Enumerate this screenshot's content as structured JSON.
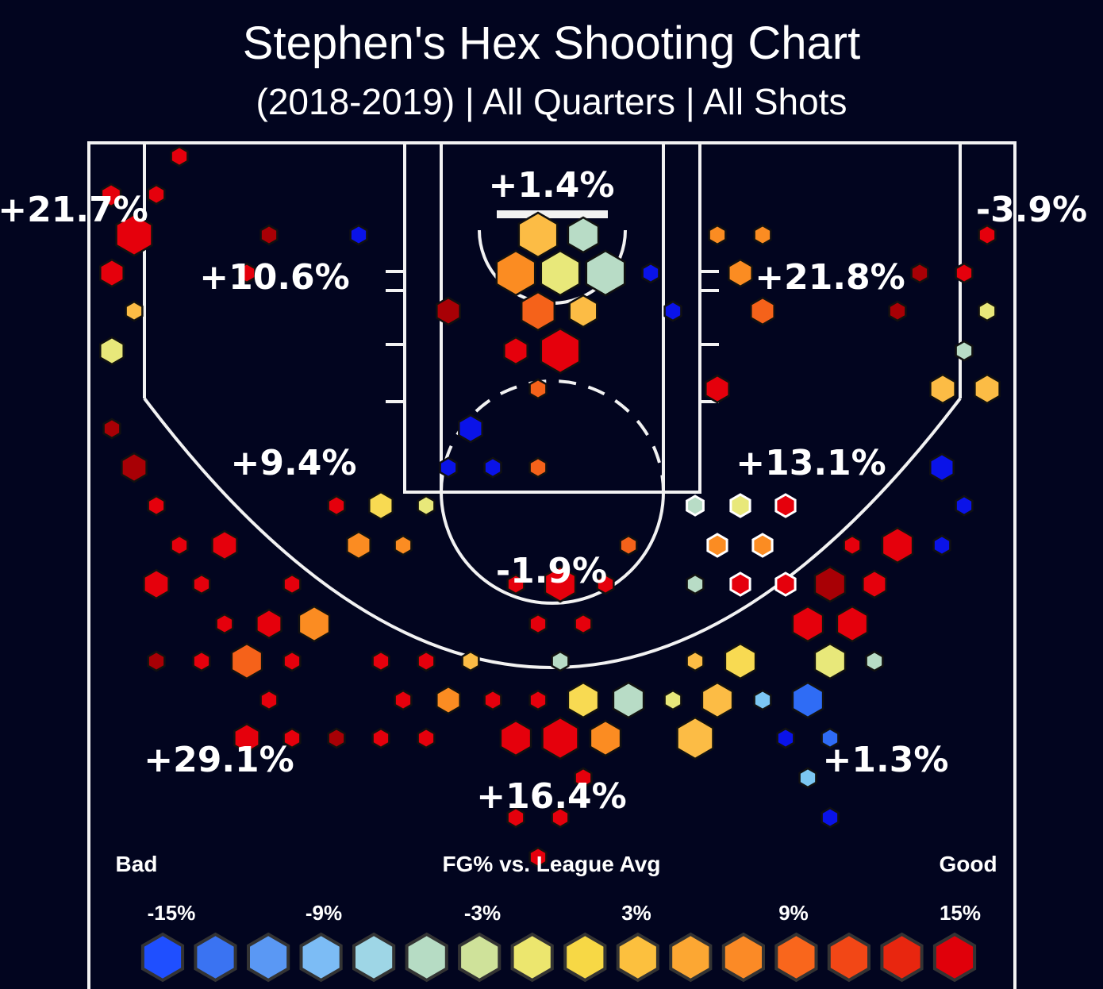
{
  "title": "Stephen's Hex Shooting Chart",
  "subtitle": "(2018-2019) | All Quarters | All Shots",
  "chart_data": {
    "type": "heatmap",
    "metric": "FG% vs. League Avg",
    "legend": {
      "title": "FG% vs. League Avg",
      "low_label": "Bad",
      "high_label": "Good",
      "tick_labels": [
        "-15%",
        "-9%",
        "-3%",
        "3%",
        "9%",
        "15%"
      ],
      "swatches": [
        "#1f4fff",
        "#3a73f2",
        "#5a98f4",
        "#7cbcf5",
        "#9ed6e6",
        "#b6dcc4",
        "#cfe29a",
        "#ece66e",
        "#f7d845",
        "#fcc03e",
        "#fca733",
        "#fb8a26",
        "#f9661c",
        "#f24716",
        "#e8260f",
        "#e0000a"
      ]
    },
    "zones": [
      {
        "label": "+21.7%",
        "value": 21.7
      },
      {
        "label": "+10.6%",
        "value": 10.6
      },
      {
        "label": "+1.4%",
        "value": 1.4
      },
      {
        "label": "+21.8%",
        "value": 21.8
      },
      {
        "label": "-3.9%",
        "value": -3.9
      },
      {
        "label": "+9.4%",
        "value": 9.4
      },
      {
        "label": "+13.1%",
        "value": 13.1
      },
      {
        "label": "-1.9%",
        "value": -1.9
      },
      {
        "label": "+29.1%",
        "value": 29.1
      },
      {
        "label": "+16.4%",
        "value": 16.4
      },
      {
        "label": "+1.3%",
        "value": 1.3
      }
    ]
  }
}
